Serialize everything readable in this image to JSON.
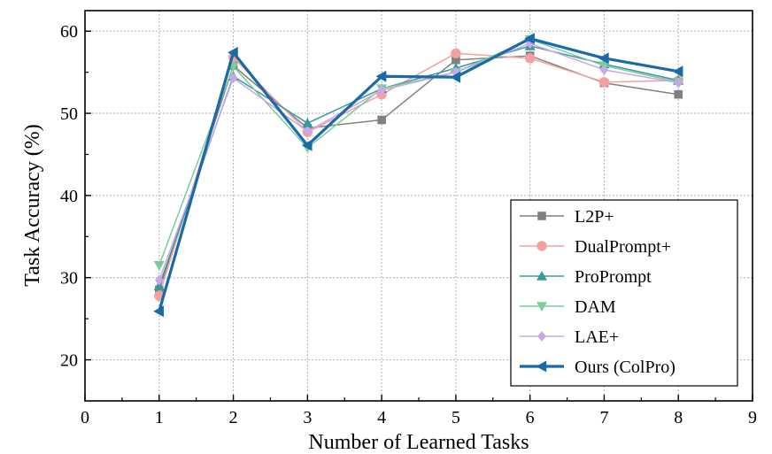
{
  "chart_data": {
    "type": "line",
    "xlabel": "Number of Learned Tasks",
    "ylabel": "Task Accuracy (%)",
    "xlim": [
      0,
      9
    ],
    "ylim": [
      15,
      62.5
    ],
    "xticks": [
      0,
      1,
      2,
      3,
      4,
      5,
      6,
      7,
      8,
      9
    ],
    "yticks": [
      20,
      30,
      40,
      50,
      60
    ],
    "grid": true,
    "legend_position": "bottom-right",
    "x": [
      1,
      2,
      3,
      4,
      5,
      6,
      7,
      8
    ],
    "series": [
      {
        "name": "L2P+",
        "color": "#808080",
        "marker": "square",
        "width": 1.5,
        "values": [
          28.5,
          55.8,
          48.2,
          49.2,
          56.5,
          57.0,
          53.7,
          52.3
        ]
      },
      {
        "name": "DualPrompt+",
        "color": "#f4a0a0",
        "marker": "circle",
        "width": 1.5,
        "values": [
          27.8,
          56.8,
          47.7,
          52.3,
          57.3,
          56.7,
          53.8,
          54.0
        ]
      },
      {
        "name": "ProPrompt",
        "color": "#3a9a9a",
        "marker": "triangle-up",
        "width": 1.5,
        "values": [
          29.0,
          54.5,
          48.8,
          53.0,
          55.5,
          58.2,
          56.0,
          54.0
        ]
      },
      {
        "name": "DAM",
        "color": "#7ccc9a",
        "marker": "triangle-down",
        "width": 1.5,
        "values": [
          31.5,
          55.7,
          45.8,
          53.0,
          55.0,
          59.0,
          55.8,
          53.8
        ]
      },
      {
        "name": "LAE+",
        "color": "#c8a8e8",
        "marker": "diamond",
        "width": 1.5,
        "values": [
          29.7,
          54.3,
          47.8,
          52.8,
          55.0,
          58.5,
          55.3,
          53.7
        ]
      },
      {
        "name": "Ours (ColPro)",
        "color": "#1a6aa8",
        "marker": "triangle-left",
        "width": 3.2,
        "values": [
          25.9,
          57.4,
          46.1,
          54.5,
          54.4,
          59.1,
          56.7,
          55.1
        ]
      }
    ]
  }
}
